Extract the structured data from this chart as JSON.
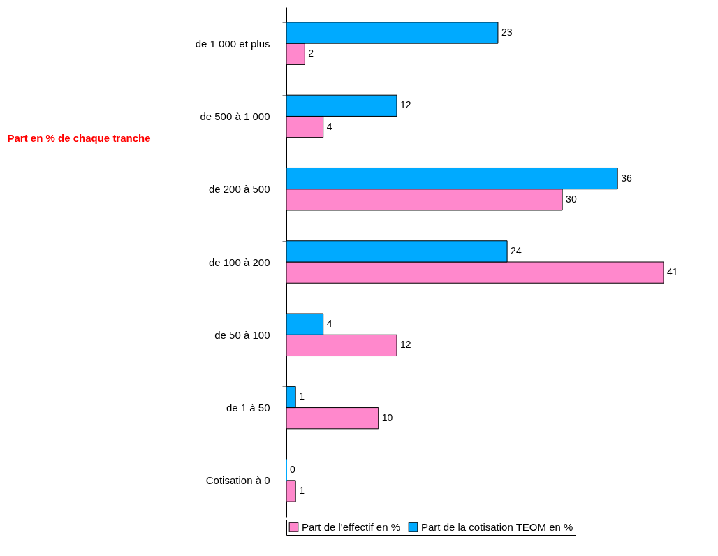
{
  "chart_data": {
    "type": "bar",
    "orientation": "horizontal",
    "ylabel": "Part en % de chaque tranche",
    "categories": [
      "de 1 000 et plus",
      "de 500 à 1 000",
      "de 200 à 500",
      "de 100 à 200",
      "de 50 à 100",
      "de 1 à 50",
      "Cotisation à 0"
    ],
    "series": [
      {
        "name": "Part de l'effectif en %",
        "color": "#ff88cc",
        "values": [
          2,
          4,
          30,
          41,
          12,
          10,
          1
        ]
      },
      {
        "name": "Part de la cotisation TEOM en %",
        "color": "#00aaff",
        "values": [
          23,
          12,
          36,
          24,
          4,
          1,
          0
        ]
      }
    ],
    "data_labels": true,
    "legend": "bottom",
    "grid": false,
    "tick_labels": "y"
  }
}
